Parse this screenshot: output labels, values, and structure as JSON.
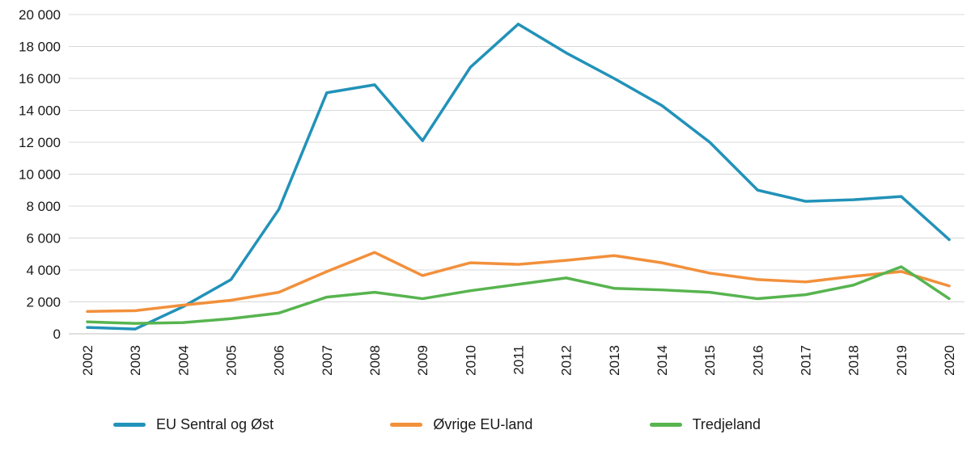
{
  "chart_data": {
    "type": "line",
    "categories": [
      "2002",
      "2003",
      "2004",
      "2005",
      "2006",
      "2007",
      "2008",
      "2009",
      "2010",
      "2011",
      "2012",
      "2013",
      "2014",
      "2015",
      "2016",
      "2017",
      "2018",
      "2019",
      "2020"
    ],
    "series": [
      {
        "name": "EU Sentral og Øst",
        "color": "#2292b9",
        "values": [
          400,
          300,
          1700,
          3400,
          7800,
          15100,
          15600,
          12100,
          16700,
          19400,
          17600,
          16000,
          14300,
          12000,
          9000,
          8300,
          8400,
          8600,
          5900
        ]
      },
      {
        "name": "Øvrige EU-land",
        "color": "#f2903b",
        "values": [
          1400,
          1450,
          1800,
          2100,
          2600,
          3900,
          5100,
          3650,
          4450,
          4350,
          4600,
          4900,
          4450,
          3800,
          3400,
          3250,
          3600,
          3900,
          3000
        ]
      },
      {
        "name": "Tredjeland",
        "color": "#57b44f",
        "values": [
          750,
          650,
          700,
          950,
          1300,
          2300,
          2600,
          2200,
          2700,
          3100,
          3500,
          2850,
          2750,
          2600,
          2200,
          2450,
          3050,
          4200,
          2200
        ]
      }
    ],
    "ylim": [
      0,
      20000
    ],
    "yticks": [
      0,
      2000,
      4000,
      6000,
      8000,
      10000,
      12000,
      14000,
      16000,
      18000,
      20000
    ],
    "ytick_labels": [
      "0",
      "2 000",
      "4 000",
      "6 000",
      "8 000",
      "10 000",
      "12 000",
      "14 000",
      "16 000",
      "18 000",
      "20 000"
    ],
    "grid": true,
    "legend_position": "bottom",
    "line_width": 3.5
  }
}
